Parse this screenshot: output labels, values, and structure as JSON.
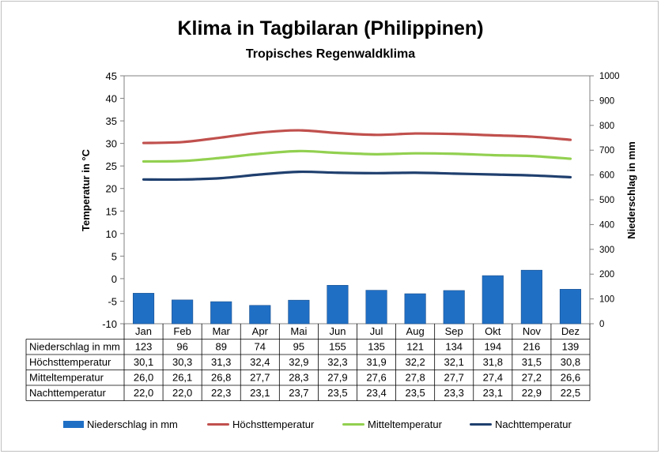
{
  "chart_data": {
    "type": "bar+line",
    "title": "Klima in Tagbilaran (Philippinen)",
    "subtitle": "Tropisches Regenwaldklima",
    "ylabel_left": "Temperatur in °C",
    "ylabel_right": "Niederschlag in mm",
    "ylim_left": [
      -10,
      45
    ],
    "yticks_left": [
      "45",
      "40",
      "35",
      "30",
      "25",
      "20",
      "15",
      "10",
      "5",
      "0",
      "-5",
      "-10"
    ],
    "ylim_right": [
      0,
      1000
    ],
    "yticks_right": [
      "1000",
      "900",
      "800",
      "700",
      "600",
      "500",
      "400",
      "300",
      "200",
      "100",
      "0"
    ],
    "grid": false,
    "legend_position": "bottom",
    "categories": [
      "Jan",
      "Feb",
      "Mar",
      "Apr",
      "Mai",
      "Jun",
      "Jul",
      "Aug",
      "Sep",
      "Okt",
      "Nov",
      "Dez"
    ],
    "series": [
      {
        "name": "Niederschlag in mm",
        "type": "bar",
        "axis": "right",
        "color": "#1f6fc5",
        "values": [
          123,
          96,
          89,
          74,
          95,
          155,
          135,
          121,
          134,
          194,
          216,
          139
        ],
        "labels": [
          "123",
          "96",
          "89",
          "74",
          "95",
          "155",
          "135",
          "121",
          "134",
          "194",
          "216",
          "139"
        ]
      },
      {
        "name": "Höchsttemperatur",
        "type": "line",
        "axis": "left",
        "color": "#c0504d",
        "values": [
          30.1,
          30.3,
          31.3,
          32.4,
          32.9,
          32.3,
          31.9,
          32.2,
          32.1,
          31.8,
          31.5,
          30.8
        ],
        "labels": [
          "30,1",
          "30,3",
          "31,3",
          "32,4",
          "32,9",
          "32,3",
          "31,9",
          "32,2",
          "32,1",
          "31,8",
          "31,5",
          "30,8"
        ]
      },
      {
        "name": "Mitteltemperatur",
        "type": "line",
        "axis": "left",
        "color": "#92d050",
        "values": [
          26.0,
          26.1,
          26.8,
          27.7,
          28.3,
          27.9,
          27.6,
          27.8,
          27.7,
          27.4,
          27.2,
          26.6
        ],
        "labels": [
          "26,0",
          "26,1",
          "26,8",
          "27,7",
          "28,3",
          "27,9",
          "27,6",
          "27,8",
          "27,7",
          "27,4",
          "27,2",
          "26,6"
        ]
      },
      {
        "name": "Nachttemperatur",
        "type": "line",
        "axis": "left",
        "color": "#1f3f6e",
        "values": [
          22.0,
          22.0,
          22.3,
          23.1,
          23.7,
          23.5,
          23.4,
          23.5,
          23.3,
          23.1,
          22.9,
          22.5
        ],
        "labels": [
          "22,0",
          "22,0",
          "22,3",
          "23,1",
          "23,7",
          "23,5",
          "23,4",
          "23,5",
          "23,3",
          "23,1",
          "22,9",
          "22,5"
        ]
      }
    ]
  }
}
